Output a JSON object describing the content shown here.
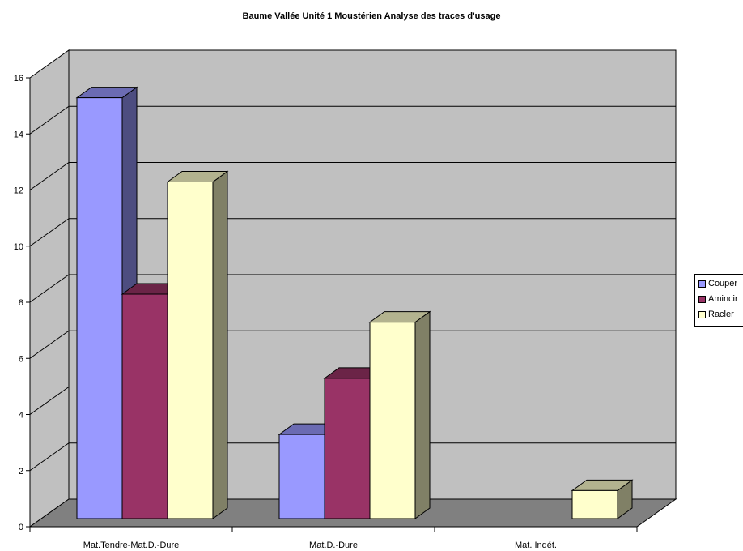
{
  "chart_data": {
    "type": "bar",
    "title": "Baume Vallée Unité 1 Moustérien Analyse des traces d'usage",
    "categories": [
      "Mat.Tendre-Mat.D.-Dure",
      "Mat.D.-Dure",
      "Mat. Indét."
    ],
    "series": [
      {
        "name": "Couper",
        "values": [
          15,
          3,
          0
        ],
        "color": "#9999ff"
      },
      {
        "name": "Amincir",
        "values": [
          8,
          5,
          0
        ],
        "color": "#993366"
      },
      {
        "name": "Racler",
        "values": [
          12,
          7,
          1
        ],
        "color": "#ffffcc"
      }
    ],
    "ylim": [
      0,
      16
    ],
    "yticks": [
      "0",
      "2",
      "4",
      "6",
      "8",
      "10",
      "12",
      "14",
      "16"
    ],
    "xlabel": "",
    "ylabel": "",
    "grid": true,
    "legend_position": "right",
    "colors": {
      "wall": "#c0c0c0",
      "floor": "#808080"
    }
  }
}
